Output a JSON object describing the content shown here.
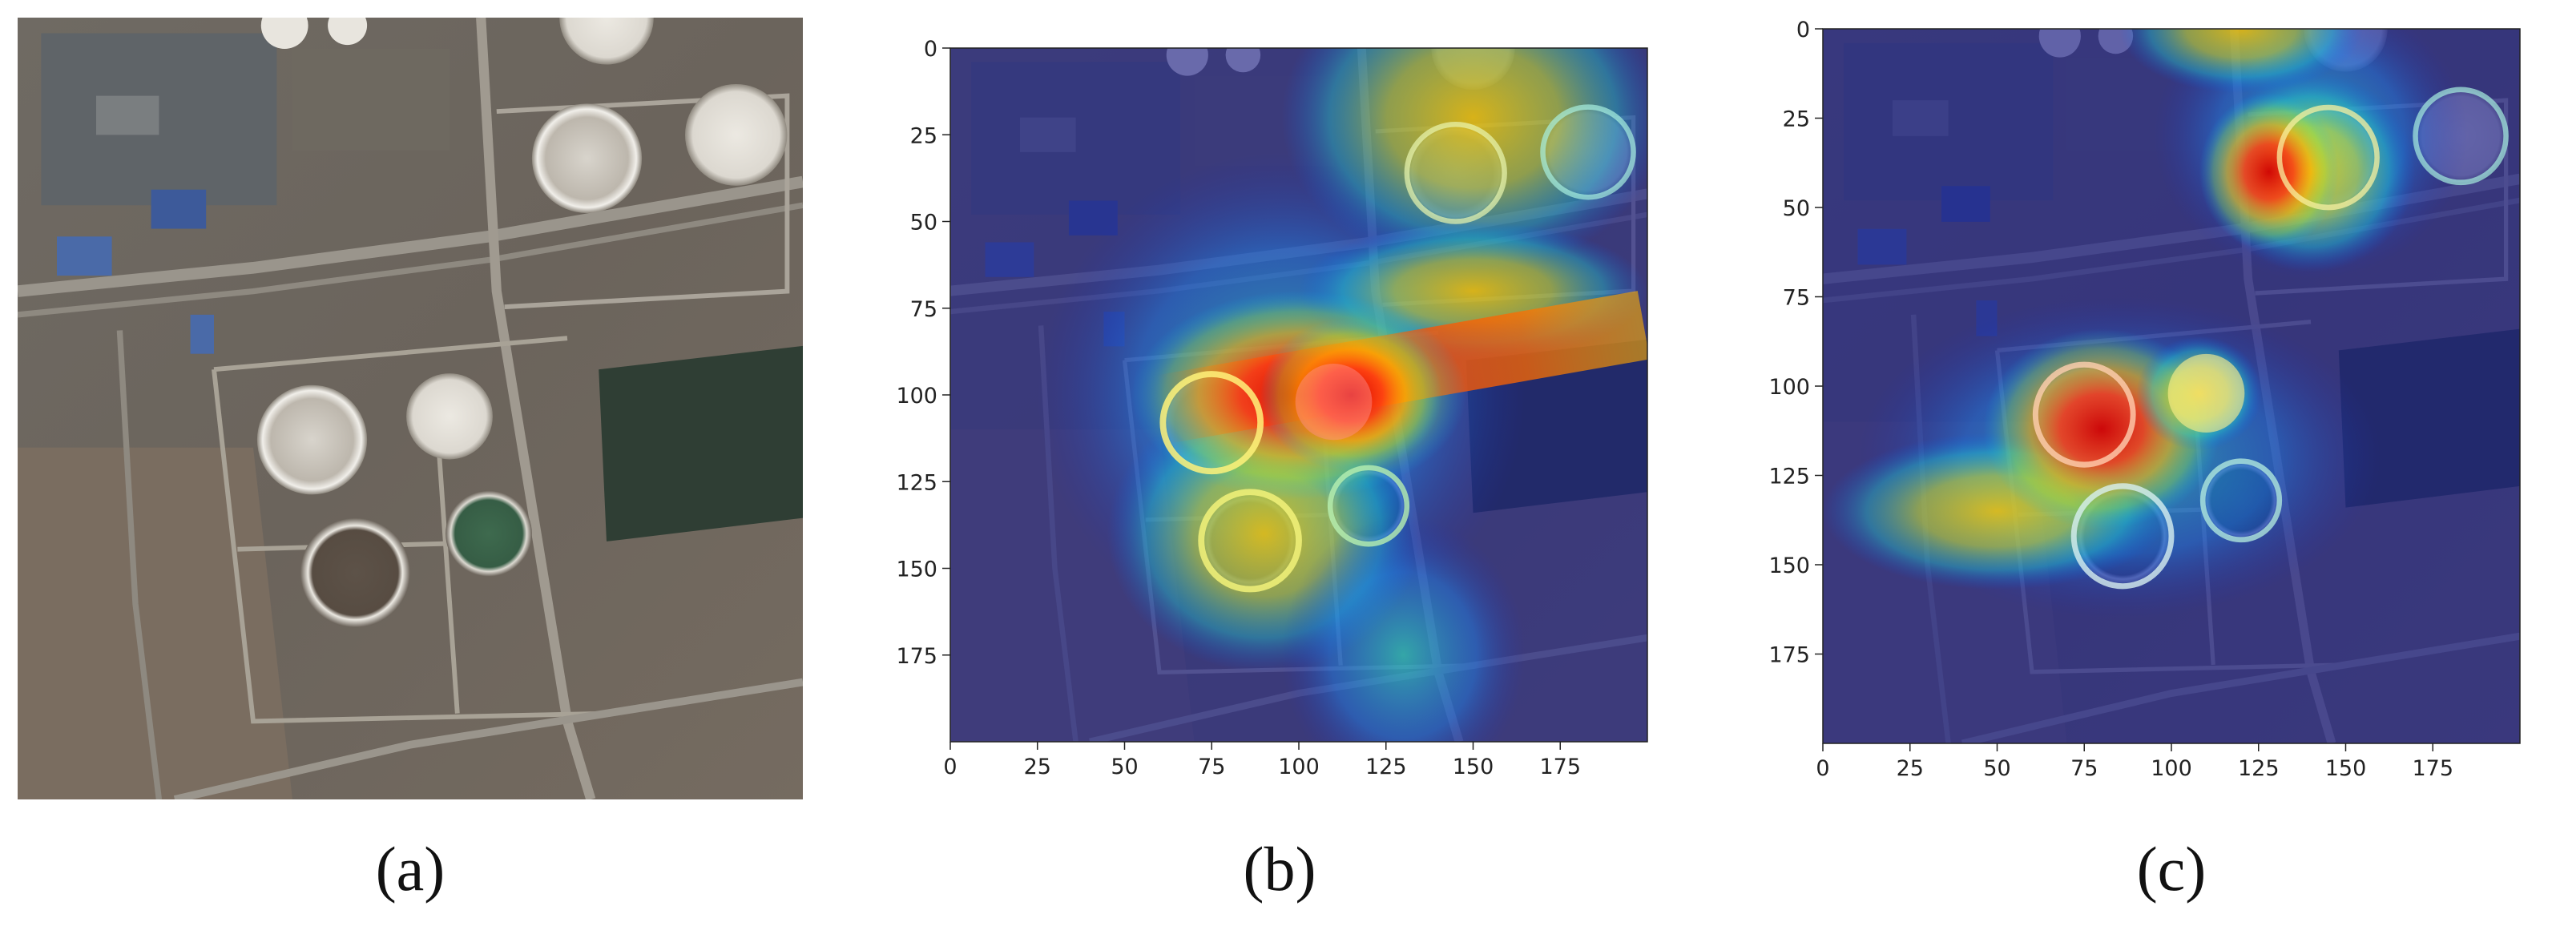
{
  "panels": [
    {
      "id": "a",
      "caption": "(a)",
      "type": "satellite-image"
    },
    {
      "id": "b",
      "caption": "(b)",
      "type": "heatmap-overlay",
      "x_ticks": [
        "0",
        "25",
        "50",
        "75",
        "100",
        "125",
        "150",
        "175"
      ],
      "y_ticks": [
        "0",
        "25",
        "50",
        "75",
        "100",
        "125",
        "150",
        "175"
      ],
      "xlim": [
        0,
        200
      ],
      "ylim": [
        0,
        200
      ]
    },
    {
      "id": "c",
      "caption": "(c)",
      "type": "heatmap-overlay",
      "x_ticks": [
        "0",
        "25",
        "50",
        "75",
        "100",
        "125",
        "150",
        "175"
      ],
      "y_ticks": [
        "0",
        "25",
        "50",
        "75",
        "100",
        "125",
        "150",
        "175"
      ],
      "xlim": [
        0,
        200
      ],
      "ylim": [
        0,
        200
      ]
    }
  ]
}
